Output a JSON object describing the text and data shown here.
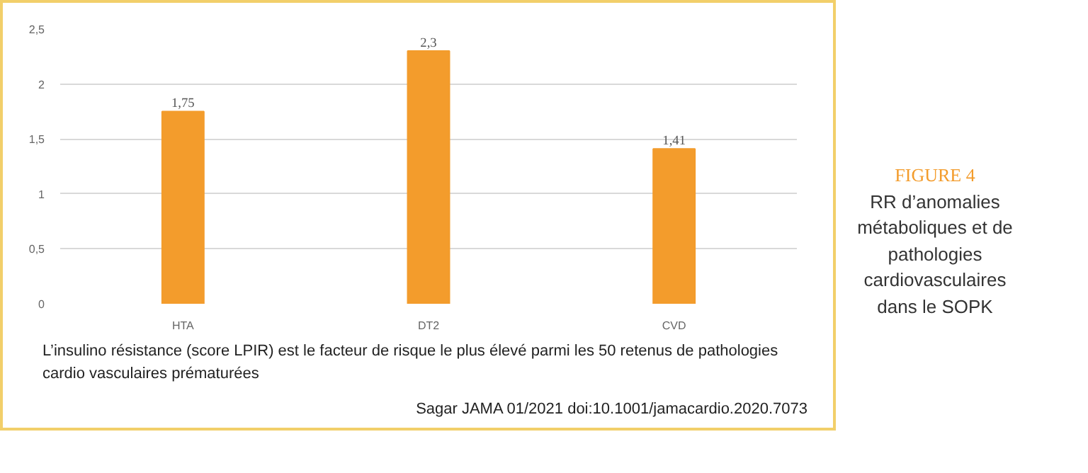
{
  "chart_data": {
    "type": "bar",
    "title": "FIGURE 4",
    "subtitle": "RR d’anomalies métaboliques et de pathologies cardiovasculaires dans le SOPK",
    "categories": [
      "HTA",
      "DT2",
      "CVD"
    ],
    "values": [
      1.75,
      2.3,
      1.41
    ],
    "color": "#f39c2c",
    "value_labels": [
      "1,75",
      "2,3",
      "1,41"
    ],
    "ylim": [
      0,
      2.5
    ],
    "yticks": [
      0,
      {
        "value": 0.5,
        "label": "0,5"
      },
      1,
      {
        "value": 1.5,
        "label": "1,5"
      },
      2,
      {
        "value": 2.5,
        "label": "2,5"
      }
    ],
    "grid": "y",
    "annotations": [
      "L’insulino résistance (score LPIR) est le facteur de risque le plus élevé parmi les 50 retenus de pathologies cardio vasculaires prématurées",
      "Sagar JAMA 01/2021 doi:10.1001/jamacardio.2020.7073"
    ]
  }
}
